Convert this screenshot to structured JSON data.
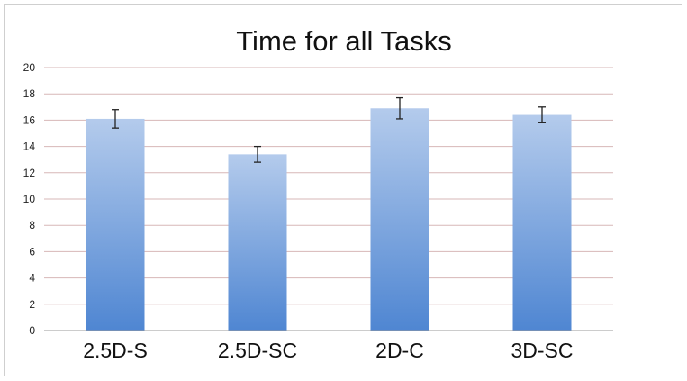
{
  "chart_data": {
    "type": "bar",
    "title": "Time for all Tasks",
    "categories": [
      "2.5D-S",
      "2.5D-SC",
      "2D-C",
      "3D-SC"
    ],
    "values": [
      16.1,
      13.4,
      16.9,
      16.4
    ],
    "error": [
      0.7,
      0.6,
      0.8,
      0.6
    ],
    "ylim": [
      0,
      20
    ],
    "yticks": [
      0,
      2,
      4,
      6,
      8,
      10,
      12,
      14,
      16,
      18,
      20
    ],
    "grid": true,
    "bar_color_top": "#b4cbec",
    "bar_color_bottom": "#4f86d2",
    "grid_color": "#d7b7b7"
  }
}
